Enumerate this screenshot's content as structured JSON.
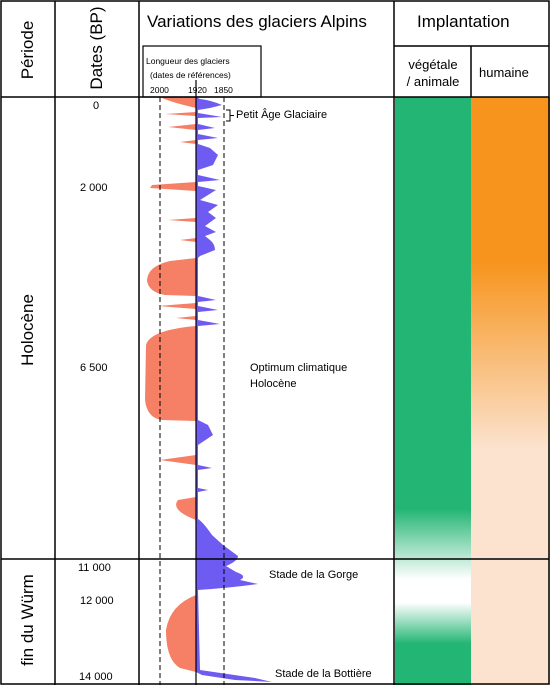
{
  "header": {
    "periode": "Période",
    "dates": "Dates (BP)",
    "variations": "Variations des glaciers Alpins",
    "implantation": "Implantation"
  },
  "glacier_subheader": {
    "line1": "Longueur des glaciers",
    "line2": "(dates de références)",
    "ref_dates": [
      "2000",
      "1920",
      "1850"
    ]
  },
  "implantation_subheaders": {
    "vegetale_line1": "végétale",
    "vegetale_line2": "/ animale",
    "humaine": "humaine"
  },
  "periods": [
    "Holocène",
    "fin du Würm"
  ],
  "dates": [
    "0",
    "2 000",
    "6 500",
    "11 000",
    "12 000",
    "14 000"
  ],
  "annotations": {
    "petit_age": "Petit Âge Glaciaire",
    "optimum_line1": "Optimum climatique",
    "optimum_line2": "Holocène",
    "gorge": "Stade de la Gorge",
    "bottiere": "Stade de la Bottière"
  },
  "colors": {
    "retreat": "#f58066",
    "advance": "#6e5cf2",
    "vegetal": "#22b573",
    "human": "#f7941d",
    "human_pale": "#fbe3cf"
  }
}
